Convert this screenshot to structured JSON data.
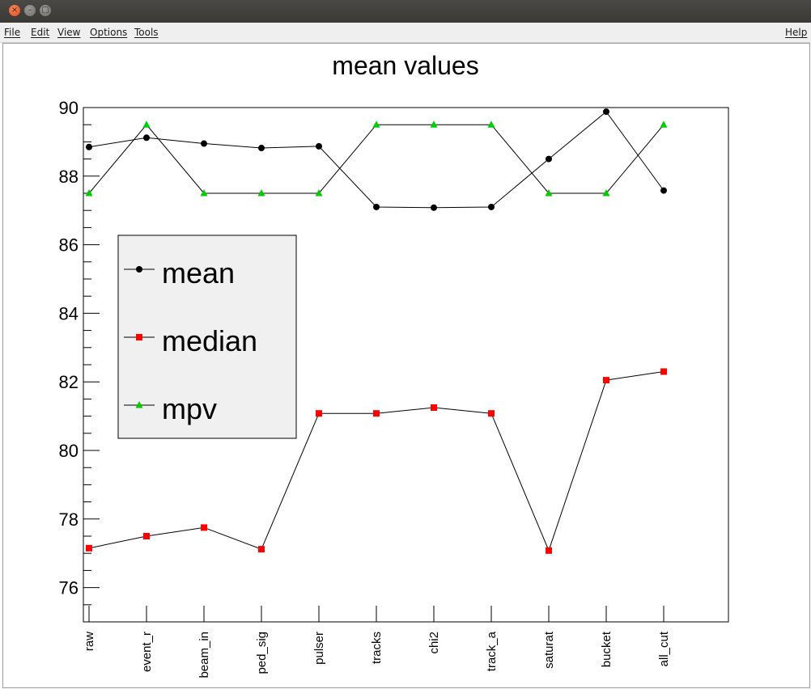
{
  "window": {
    "controls": {
      "close": "×",
      "minimize": "–",
      "maximize": "□"
    }
  },
  "menu": {
    "file": "File",
    "edit": "Edit",
    "view": "View",
    "options": "Options",
    "tools": "Tools",
    "help": "Help"
  },
  "colors": {
    "mean": "#000000",
    "median": "#ff0000",
    "mpv": "#00cc00",
    "legend_bg": "#f0f0f0"
  },
  "chart_data": {
    "type": "line",
    "title": "mean values",
    "xlabel": "",
    "ylabel": "",
    "ylim": [
      75,
      90
    ],
    "yticks": [
      76,
      78,
      80,
      82,
      84,
      86,
      88,
      90
    ],
    "categories": [
      "raw",
      "event_r",
      "beam_in",
      "ped_sig",
      "pulser",
      "tracks",
      "chi2",
      "track_a",
      "saturat",
      "bucket",
      "all_cut"
    ],
    "series": [
      {
        "name": "mean",
        "marker": "circle",
        "values": [
          88.85,
          89.12,
          88.95,
          88.82,
          88.87,
          87.1,
          87.08,
          87.1,
          88.5,
          89.88,
          87.58
        ]
      },
      {
        "name": "median",
        "marker": "square",
        "values": [
          77.15,
          77.5,
          77.75,
          77.12,
          81.08,
          81.08,
          81.25,
          81.08,
          77.08,
          82.05,
          82.3
        ]
      },
      {
        "name": "mpv",
        "marker": "triangle",
        "values": [
          87.5,
          89.5,
          87.5,
          87.5,
          87.5,
          89.5,
          89.5,
          89.5,
          87.5,
          87.5,
          89.5
        ]
      }
    ],
    "legend_position": "left",
    "grid": false
  }
}
